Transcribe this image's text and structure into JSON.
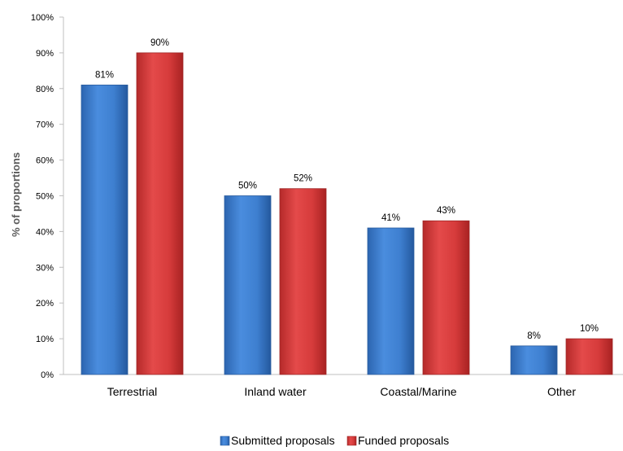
{
  "chart_data": {
    "type": "bar",
    "title": "",
    "xlabel": "",
    "ylabel": "% of proportions",
    "ylim": [
      0,
      100
    ],
    "yticks": [
      "0%",
      "10%",
      "20%",
      "30%",
      "40%",
      "50%",
      "60%",
      "70%",
      "80%",
      "90%",
      "100%"
    ],
    "categories": [
      "Terrestrial",
      "Inland water",
      "Coastal/Marine",
      "Other"
    ],
    "series": [
      {
        "name": "Submitted proposals",
        "color": "#3E7FD0",
        "values": [
          81,
          50,
          41,
          8
        ],
        "labels": [
          "81%",
          "50%",
          "41%",
          "8%"
        ]
      },
      {
        "name": "Funded proposals",
        "color": "#D63B3B",
        "values": [
          90,
          52,
          43,
          10
        ],
        "labels": [
          "90%",
          "52%",
          "43%",
          "10%"
        ]
      }
    ],
    "grid": false,
    "legend_position": "bottom"
  }
}
